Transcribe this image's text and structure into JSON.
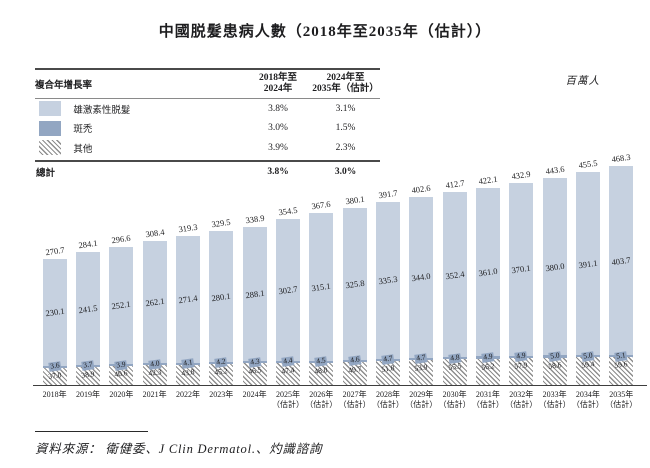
{
  "title": "中國脱髮患病人數（2018年至2035年（估計））",
  "unit_label": "百萬人",
  "cagr_table": {
    "header": {
      "label": "複合年增長率",
      "col1_line1": "2018年至",
      "col1_line2": "2024年",
      "col2_line1": "2024年至",
      "col2_line2": "2035年（估計）"
    },
    "rows": [
      {
        "label": "雄激素性脱髮",
        "cagr_2018_2024": "3.8%",
        "cagr_2024_2035": "3.1%"
      },
      {
        "label": "斑禿",
        "cagr_2018_2024": "3.0%",
        "cagr_2024_2035": "1.5%"
      },
      {
        "label": "其他",
        "cagr_2018_2024": "3.9%",
        "cagr_2024_2035": "2.3%"
      }
    ],
    "total": {
      "label": "總計",
      "cagr_2018_2024": "3.8%",
      "cagr_2024_2035": "3.0%"
    }
  },
  "chart_data": {
    "type": "bar",
    "stacked": true,
    "title": "中國脱髮患病人數（2018年至2035年（估計））",
    "ylabel": "百萬人",
    "grid": false,
    "legend_position": "top-left-table",
    "categories": [
      {
        "label": "2018年",
        "sublabel": ""
      },
      {
        "label": "2019年",
        "sublabel": ""
      },
      {
        "label": "2020年",
        "sublabel": ""
      },
      {
        "label": "2021年",
        "sublabel": ""
      },
      {
        "label": "2022年",
        "sublabel": ""
      },
      {
        "label": "2023年",
        "sublabel": ""
      },
      {
        "label": "2024年",
        "sublabel": ""
      },
      {
        "label": "2025年",
        "sublabel": "（估計）"
      },
      {
        "label": "2026年",
        "sublabel": "（估計）"
      },
      {
        "label": "2027年",
        "sublabel": "（估計）"
      },
      {
        "label": "2028年",
        "sublabel": "（估計）"
      },
      {
        "label": "2029年",
        "sublabel": "（估計）"
      },
      {
        "label": "2030年",
        "sublabel": "（估計）"
      },
      {
        "label": "2031年",
        "sublabel": "（估計）"
      },
      {
        "label": "2032年",
        "sublabel": "（估計）"
      },
      {
        "label": "2033年",
        "sublabel": "（估計）"
      },
      {
        "label": "2034年",
        "sublabel": "（估計）"
      },
      {
        "label": "2035年",
        "sublabel": "（估計）"
      }
    ],
    "series": [
      {
        "name": "雄激素性脱髮",
        "color": "#c6d1e0",
        "values": [
          230.1,
          241.5,
          252.1,
          262.1,
          271.4,
          280.1,
          288.1,
          302.7,
          315.1,
          325.8,
          335.3,
          344.0,
          352.4,
          361.0,
          370.1,
          380.0,
          391.1,
          403.7
        ]
      },
      {
        "name": "斑禿",
        "color": "#92a6c2",
        "values": [
          3.6,
          3.7,
          3.9,
          4.0,
          4.1,
          4.2,
          4.3,
          4.4,
          4.5,
          4.6,
          4.7,
          4.7,
          4.8,
          4.9,
          4.9,
          5.0,
          5.0,
          5.1
        ]
      },
      {
        "name": "其他",
        "color": "diagonal-hatch",
        "values": [
          37.0,
          38.9,
          40.6,
          42.3,
          43.8,
          45.2,
          46.5,
          47.4,
          48.0,
          49.7,
          51.8,
          53.9,
          55.5,
          56.2,
          57.9,
          58.6,
          59.4,
          59.6
        ]
      }
    ],
    "totals": [
      270.7,
      284.1,
      296.6,
      308.4,
      319.3,
      329.5,
      338.9,
      354.5,
      367.6,
      380.1,
      391.7,
      402.6,
      412.7,
      422.1,
      432.9,
      443.6,
      455.5,
      468.3
    ]
  },
  "source": "資料來源： 衛健委、J Clin Dermatol.、灼識諮詢",
  "colors": {
    "androgenetic": "#c6d1e0",
    "areata": "#92a6c2",
    "hatch_line": "#8d8d8d",
    "text": "#1d1d1f"
  }
}
